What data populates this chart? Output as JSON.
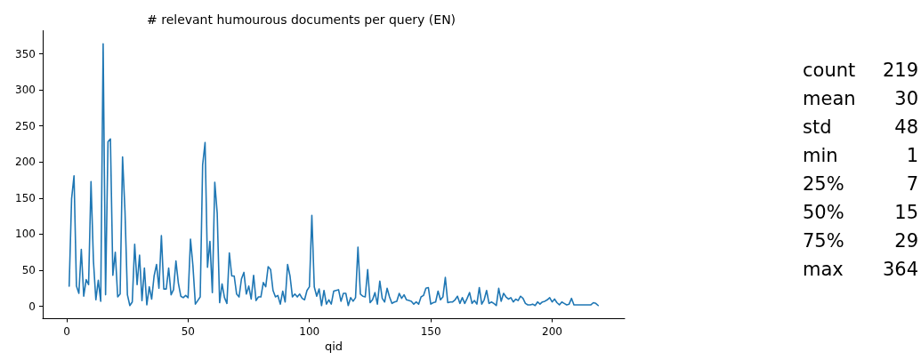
{
  "chart_data": {
    "type": "line",
    "title": "# relevant humourous documents per query (EN)",
    "xlabel": "qid",
    "xlim": [
      -9.9,
      229.9
    ],
    "xticks": [
      0,
      50,
      100,
      150,
      200
    ],
    "ylim": [
      -17.15,
      382.15
    ],
    "yticks": [
      0,
      50,
      100,
      150,
      200,
      250,
      300,
      350
    ],
    "grid": false,
    "marker": "none",
    "line_style": "solid",
    "annotations": [
      "count",
      "219",
      "mean",
      "30",
      "std",
      "48",
      "min",
      "1",
      "25%",
      "7",
      "50%",
      "15",
      "75%",
      "29",
      "max",
      "364"
    ],
    "x": [
      1,
      2,
      3,
      4,
      5,
      6,
      7,
      8,
      9,
      10,
      11,
      12,
      13,
      14,
      15,
      16,
      17,
      18,
      19,
      20,
      21,
      22,
      23,
      24,
      25,
      26,
      27,
      28,
      29,
      30,
      31,
      32,
      33,
      34,
      35,
      36,
      37,
      38,
      39,
      40,
      41,
      42,
      43,
      44,
      45,
      46,
      47,
      48,
      49,
      50,
      51,
      52,
      53,
      54,
      55,
      56,
      57,
      58,
      59,
      60,
      61,
      62,
      63,
      64,
      65,
      66,
      67,
      68,
      69,
      70,
      71,
      72,
      73,
      74,
      75,
      76,
      77,
      78,
      79,
      80,
      81,
      82,
      83,
      84,
      85,
      86,
      87,
      88,
      89,
      90,
      91,
      92,
      93,
      94,
      95,
      96,
      97,
      98,
      99,
      100,
      101,
      102,
      103,
      104,
      105,
      106,
      107,
      108,
      109,
      110,
      111,
      112,
      113,
      114,
      115,
      116,
      117,
      118,
      119,
      120,
      121,
      122,
      123,
      124,
      125,
      126,
      127,
      128,
      129,
      130,
      131,
      132,
      133,
      134,
      135,
      136,
      137,
      138,
      139,
      140,
      141,
      142,
      143,
      144,
      145,
      146,
      147,
      148,
      149,
      150,
      151,
      152,
      153,
      154,
      155,
      156,
      157,
      158,
      159,
      160,
      161,
      162,
      163,
      164,
      165,
      166,
      167,
      168,
      169,
      170,
      171,
      172,
      173,
      174,
      175,
      176,
      177,
      178,
      179,
      180,
      181,
      182,
      183,
      184,
      185,
      186,
      187,
      188,
      189,
      190,
      191,
      192,
      193,
      194,
      195,
      196,
      197,
      198,
      199,
      200,
      201,
      202,
      203,
      204,
      205,
      206,
      207,
      208,
      209,
      210,
      211,
      212,
      213,
      214,
      215,
      216,
      217,
      218,
      219
    ],
    "series": [
      {
        "color": "#1f77b4",
        "values": [
          28,
          149,
          181,
          28,
          18,
          79,
          14,
          37,
          30,
          173,
          63,
          9,
          36,
          7,
          364,
          16,
          228,
          232,
          43,
          75,
          13,
          17,
          207,
          132,
          16,
          1,
          6,
          86,
          30,
          71,
          8,
          53,
          2,
          27,
          10,
          42,
          58,
          25,
          98,
          24,
          24,
          53,
          16,
          23,
          63,
          32,
          14,
          12,
          15,
          12,
          93,
          56,
          3,
          8,
          13,
          196,
          227,
          54,
          90,
          19,
          172,
          129,
          5,
          31,
          12,
          4,
          74,
          42,
          42,
          17,
          13,
          38,
          47,
          17,
          28,
          10,
          43,
          8,
          13,
          13,
          33,
          27,
          55,
          51,
          22,
          13,
          15,
          3,
          21,
          6,
          58,
          42,
          13,
          17,
          13,
          17,
          11,
          9,
          22,
          27,
          126,
          27,
          14,
          24,
          1,
          22,
          3,
          9,
          3,
          21,
          22,
          23,
          7,
          18,
          18,
          1,
          12,
          7,
          12,
          82,
          17,
          14,
          13,
          51,
          5,
          9,
          19,
          3,
          35,
          11,
          6,
          25,
          13,
          4,
          6,
          7,
          18,
          11,
          16,
          9,
          8,
          7,
          3,
          6,
          3,
          13,
          15,
          25,
          26,
          3,
          5,
          6,
          21,
          9,
          13,
          40,
          5,
          6,
          6,
          9,
          14,
          4,
          12,
          4,
          11,
          19,
          4,
          8,
          3,
          26,
          3,
          9,
          22,
          4,
          6,
          4,
          1,
          25,
          7,
          18,
          13,
          10,
          12,
          6,
          10,
          8,
          14,
          11,
          4,
          2,
          2,
          3,
          1,
          6,
          3,
          6,
          7,
          9,
          12,
          6,
          10,
          5,
          2,
          6,
          4,
          2,
          3,
          11,
          2,
          2,
          2,
          2,
          2,
          2,
          2,
          2,
          5,
          4,
          1
        ]
      }
    ]
  }
}
